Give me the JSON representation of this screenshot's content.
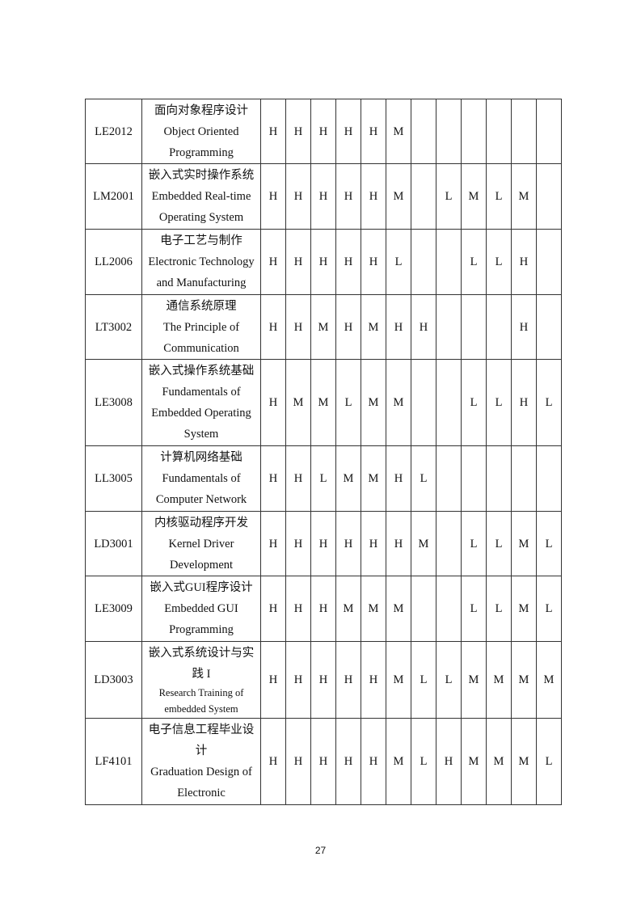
{
  "table": {
    "rows": [
      {
        "code": "LE2012",
        "name": [
          {
            "t": "面向对象程序设计"
          },
          {
            "t": "Object Oriented"
          },
          {
            "t": "Programming"
          }
        ],
        "values": [
          "H",
          "H",
          "H",
          "H",
          "H",
          "M",
          "",
          "",
          "",
          "",
          "",
          ""
        ]
      },
      {
        "code": "LM2001",
        "name": [
          {
            "t": "嵌入式实时操作系统"
          },
          {
            "t": "Embedded Real-time"
          },
          {
            "t": "Operating System"
          }
        ],
        "values": [
          "H",
          "H",
          "H",
          "H",
          "H",
          "M",
          "",
          "L",
          "M",
          "L",
          "M",
          ""
        ]
      },
      {
        "code": "LL2006",
        "name": [
          {
            "t": "电子工艺与制作"
          },
          {
            "t": "Electronic Technology"
          },
          {
            "t": "and Manufacturing"
          }
        ],
        "values": [
          "H",
          "H",
          "H",
          "H",
          "H",
          "L",
          "",
          "",
          "L",
          "L",
          "H",
          ""
        ]
      },
      {
        "code": "LT3002",
        "name": [
          {
            "t": "通信系统原理"
          },
          {
            "t": "The Principle of"
          },
          {
            "t": "Communication"
          }
        ],
        "values": [
          "H",
          "H",
          "M",
          "H",
          "M",
          "H",
          "H",
          "",
          "",
          "",
          "H",
          ""
        ]
      },
      {
        "code": "LE3008",
        "name": [
          {
            "t": "嵌入式操作系统基础"
          },
          {
            "t": "Fundamentals of"
          },
          {
            "t": "Embedded Operating"
          },
          {
            "t": "System"
          }
        ],
        "values": [
          "H",
          "M",
          "M",
          "L",
          "M",
          "M",
          "",
          "",
          "L",
          "L",
          "H",
          "L"
        ]
      },
      {
        "code": "LL3005",
        "name": [
          {
            "t": "计算机网络基础"
          },
          {
            "t": "Fundamentals of"
          },
          {
            "t": "Computer Network"
          }
        ],
        "values": [
          "H",
          "H",
          "L",
          "M",
          "M",
          "H",
          "L",
          "",
          "",
          "",
          "",
          ""
        ]
      },
      {
        "code": "LD3001",
        "name": [
          {
            "t": "内核驱动程序开发"
          },
          {
            "t": "Kernel Driver"
          },
          {
            "t": "Development"
          }
        ],
        "values": [
          "H",
          "H",
          "H",
          "H",
          "H",
          "H",
          "M",
          "",
          "L",
          "L",
          "M",
          "L"
        ]
      },
      {
        "code": "LE3009",
        "name": [
          {
            "t": "嵌入式GUI程序设计"
          },
          {
            "t": "Embedded GUI"
          },
          {
            "t": "Programming"
          }
        ],
        "values": [
          "H",
          "H",
          "H",
          "M",
          "M",
          "M",
          "",
          "",
          "L",
          "L",
          "M",
          "L"
        ]
      },
      {
        "code": "LD3003",
        "name": [
          {
            "t": "嵌入式系统设计与实"
          },
          {
            "t": "践 I"
          },
          {
            "t": "Research Training of",
            "small": true
          },
          {
            "t": "embedded System",
            "small": true
          }
        ],
        "values": [
          "H",
          "H",
          "H",
          "H",
          "H",
          "M",
          "L",
          "L",
          "M",
          "M",
          "M",
          "M"
        ]
      },
      {
        "code": "LF4101",
        "name": [
          {
            "t": "电子信息工程毕业设"
          },
          {
            "t": "计"
          },
          {
            "t": "Graduation Design of"
          },
          {
            "t": "Electronic"
          }
        ],
        "values": [
          "H",
          "H",
          "H",
          "H",
          "H",
          "M",
          "L",
          "H",
          "M",
          "M",
          "M",
          "L"
        ]
      }
    ]
  },
  "page_number": "27"
}
